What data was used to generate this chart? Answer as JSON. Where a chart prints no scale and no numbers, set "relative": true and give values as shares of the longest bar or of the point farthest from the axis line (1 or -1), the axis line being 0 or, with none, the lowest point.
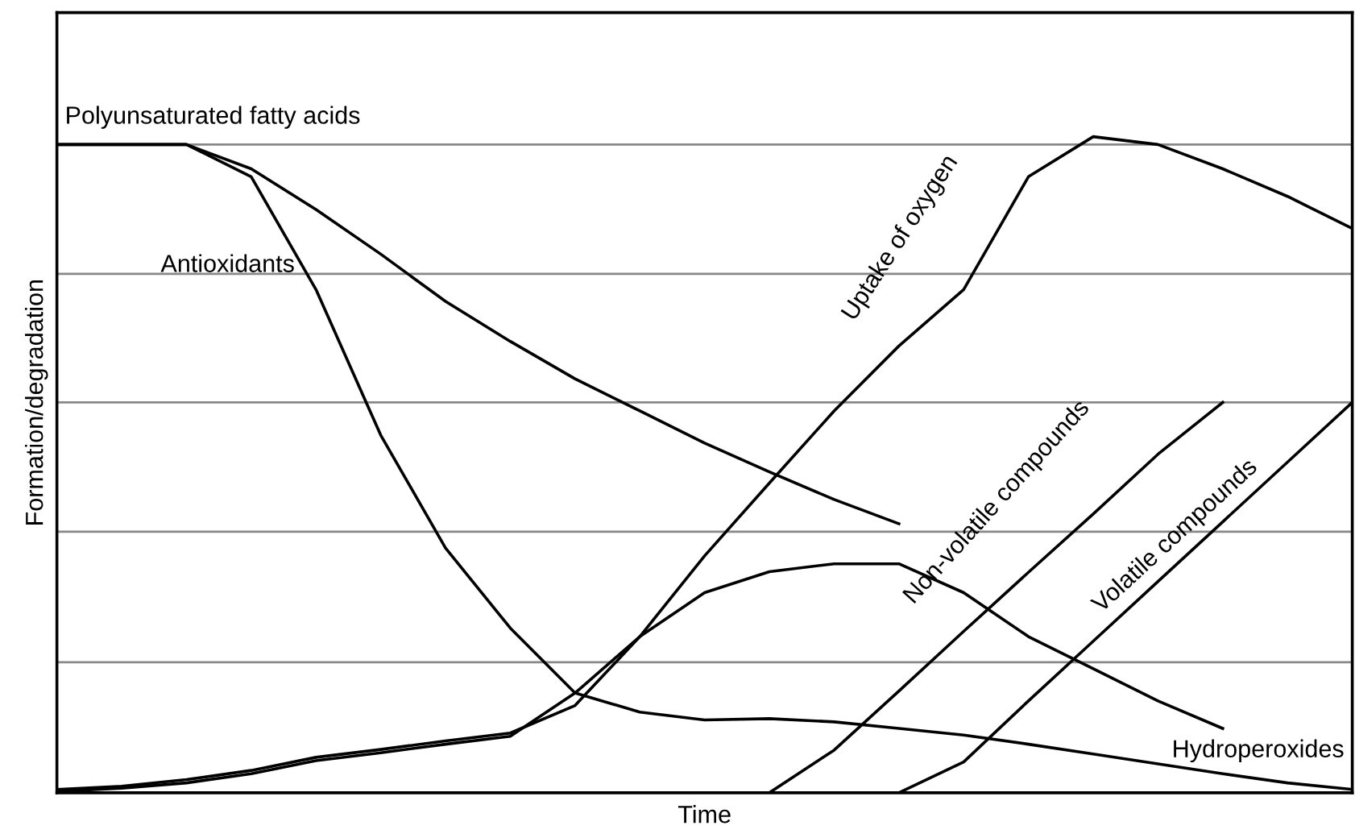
{
  "chart_data": {
    "type": "line",
    "relative": true,
    "xlabel": "Time",
    "ylabel": "Formation/degradation",
    "categories": [
      null,
      null,
      null,
      null,
      null,
      null,
      null,
      null,
      null,
      null,
      null,
      null,
      null,
      null,
      null,
      null,
      null,
      null,
      null,
      null,
      null
    ],
    "series": [
      {
        "name": "Polyunsaturated fatty acids",
        "color": "#000000",
        "values": [
          0.988,
          0.988,
          0.988,
          0.951,
          0.889,
          0.821,
          0.749,
          0.688,
          0.631,
          0.582,
          0.533,
          0.489,
          0.447,
          0.41,
          null,
          null,
          null,
          null,
          null,
          null,
          null
        ]
      },
      {
        "name": "Antioxidants",
        "color": "#000000",
        "values": [
          0.988,
          0.988,
          0.988,
          0.939,
          0.767,
          0.545,
          0.373,
          0.251,
          0.152,
          0.123,
          0.111,
          0.113,
          0.108,
          0.098,
          0.088,
          0.074,
          0.059,
          0.044,
          0.029,
          0.015,
          0.005
        ]
      },
      {
        "name": "Uptake of oxygen",
        "color": "#000000",
        "values": [
          0.005,
          0.01,
          0.02,
          0.034,
          0.054,
          0.066,
          0.079,
          0.091,
          0.133,
          0.238,
          0.361,
          0.472,
          0.582,
          0.681,
          0.767,
          0.939,
          1.0,
          0.988,
          0.951,
          0.909,
          0.86
        ]
      },
      {
        "name": "Non-volatile compounds",
        "color": "#000000",
        "values": [
          null,
          null,
          null,
          null,
          null,
          null,
          null,
          null,
          null,
          null,
          null,
          0.0,
          0.065,
          0.155,
          0.246,
          0.336,
          0.425,
          0.516,
          0.595,
          null,
          null
        ]
      },
      {
        "name": "Volatile compounds",
        "color": "#000000",
        "values": [
          null,
          null,
          null,
          null,
          null,
          null,
          null,
          null,
          null,
          null,
          null,
          null,
          null,
          0.0,
          0.047,
          0.14,
          0.231,
          0.322,
          0.413,
          0.504,
          0.595
        ]
      },
      {
        "name": "Hydroperoxides",
        "color": "#000000",
        "values": [
          0.002,
          0.007,
          0.015,
          0.029,
          0.049,
          0.061,
          0.074,
          0.086,
          0.152,
          0.238,
          0.305,
          0.337,
          0.349,
          0.349,
          0.305,
          0.238,
          0.189,
          0.14,
          0.098,
          null,
          null
        ]
      }
    ],
    "ref_lines": [
      {
        "axis": "y",
        "value": 0.199,
        "color": "#888888"
      },
      {
        "axis": "y",
        "value": 0.398,
        "color": "#888888"
      },
      {
        "axis": "y",
        "value": 0.595,
        "color": "#888888"
      },
      {
        "axis": "y",
        "value": 0.791,
        "color": "#888888"
      },
      {
        "axis": "y",
        "value": 0.988,
        "color": "#888888"
      }
    ],
    "grid": false,
    "legend": false,
    "line_style": "solid",
    "marker": "none"
  }
}
